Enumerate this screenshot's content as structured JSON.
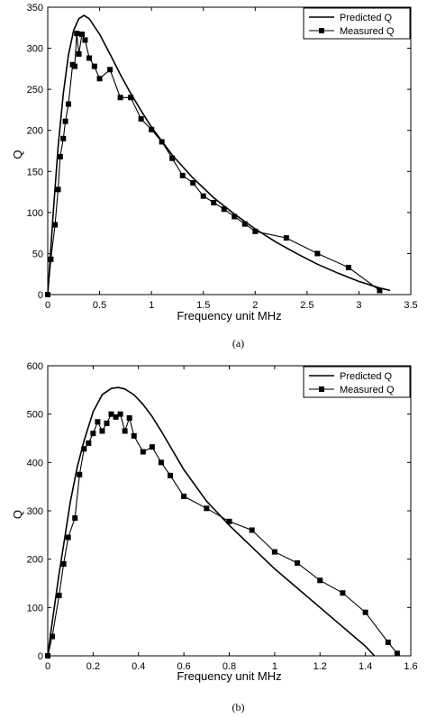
{
  "chart_data": [
    {
      "type": "line",
      "caption": "(a)",
      "xlabel": "Frequency unit MHz",
      "ylabel": "Q",
      "xlim": [
        0,
        3.5
      ],
      "ylim": [
        0,
        350
      ],
      "xticks": [
        "0",
        "0.5",
        "1",
        "1.5",
        "2",
        "2.5",
        "3",
        "3.5"
      ],
      "yticks": [
        "0",
        "50",
        "100",
        "150",
        "200",
        "250",
        "300",
        "350"
      ],
      "legend_position": "top-right",
      "grid": false,
      "series": [
        {
          "name": "Predicted Q",
          "style": "line",
          "x": [
            0,
            0.05,
            0.1,
            0.15,
            0.2,
            0.25,
            0.3,
            0.35,
            0.4,
            0.5,
            0.6,
            0.7,
            0.8,
            0.9,
            1.0,
            1.2,
            1.4,
            1.6,
            1.8,
            2.0,
            2.2,
            2.4,
            2.6,
            2.8,
            3.0,
            3.2,
            3.3
          ],
          "y": [
            0,
            95,
            180,
            245,
            292,
            322,
            336,
            340,
            336,
            317,
            293,
            268,
            245,
            224,
            204,
            170,
            142,
            118,
            98,
            80,
            64,
            50,
            37,
            26,
            16,
            8,
            5
          ]
        },
        {
          "name": "Measured Q",
          "style": "line-square",
          "x": [
            0,
            0.03,
            0.07,
            0.1,
            0.12,
            0.15,
            0.17,
            0.2,
            0.24,
            0.26,
            0.28,
            0.3,
            0.33,
            0.36,
            0.4,
            0.45,
            0.5,
            0.6,
            0.7,
            0.8,
            0.9,
            1.0,
            1.1,
            1.2,
            1.3,
            1.4,
            1.5,
            1.6,
            1.7,
            1.8,
            1.9,
            2.0,
            2.3,
            2.6,
            2.9,
            3.2
          ],
          "y": [
            0,
            43,
            85,
            128,
            168,
            190,
            211,
            232,
            280,
            278,
            318,
            293,
            317,
            310,
            288,
            278,
            263,
            274,
            240,
            240,
            214,
            201,
            186,
            166,
            145,
            136,
            120,
            112,
            104,
            95,
            86,
            77,
            69,
            50,
            33,
            5
          ]
        }
      ]
    },
    {
      "type": "line",
      "caption": "(b)",
      "xlabel": "Frequency unit MHz",
      "ylabel": "Q",
      "xlim": [
        0,
        1.6
      ],
      "ylim": [
        0,
        600
      ],
      "xticks": [
        "0",
        "0.2",
        "0.4",
        "0.6",
        "0.8",
        "1",
        "1.2",
        "1.4",
        "1.6"
      ],
      "yticks": [
        "0",
        "100",
        "200",
        "300",
        "400",
        "500",
        "600"
      ],
      "legend_position": "top-right",
      "grid": false,
      "series": [
        {
          "name": "Predicted Q",
          "style": "line",
          "x": [
            0,
            0.02,
            0.05,
            0.08,
            0.1,
            0.13,
            0.16,
            0.2,
            0.24,
            0.28,
            0.31,
            0.34,
            0.38,
            0.42,
            0.46,
            0.5,
            0.55,
            0.6,
            0.7,
            0.8,
            0.9,
            1.0,
            1.1,
            1.2,
            1.3,
            1.4,
            1.44
          ],
          "y": [
            0,
            70,
            170,
            260,
            320,
            390,
            445,
            505,
            540,
            553,
            555,
            552,
            540,
            520,
            495,
            465,
            425,
            385,
            320,
            270,
            225,
            180,
            140,
            100,
            60,
            20,
            0
          ]
        },
        {
          "name": "Measured Q",
          "style": "line-square",
          "x": [
            0,
            0.02,
            0.05,
            0.07,
            0.09,
            0.12,
            0.14,
            0.16,
            0.18,
            0.2,
            0.22,
            0.24,
            0.26,
            0.28,
            0.3,
            0.32,
            0.34,
            0.36,
            0.38,
            0.42,
            0.46,
            0.5,
            0.54,
            0.6,
            0.7,
            0.8,
            0.9,
            1.0,
            1.1,
            1.2,
            1.3,
            1.4,
            1.5,
            1.54
          ],
          "y": [
            0,
            40,
            125,
            190,
            245,
            285,
            375,
            428,
            440,
            460,
            484,
            465,
            481,
            500,
            494,
            500,
            465,
            492,
            455,
            422,
            432,
            400,
            373,
            330,
            305,
            278,
            260,
            215,
            192,
            156,
            130,
            90,
            28,
            5
          ]
        }
      ]
    }
  ]
}
